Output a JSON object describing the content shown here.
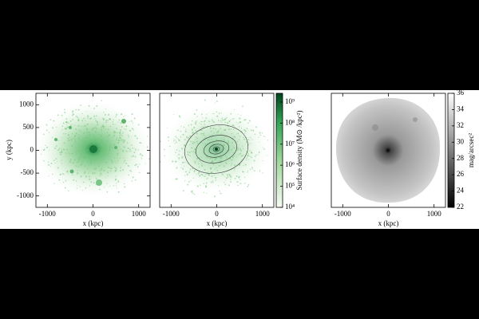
{
  "chart_data": [
    {
      "type": "image",
      "xlabel": "x (kpc)",
      "ylabel": "y (kpc)",
      "xlim": [
        -1250,
        1250
      ],
      "ylim": [
        -1250,
        1250
      ],
      "xticks": [
        -1000,
        0,
        1000
      ],
      "yticks": [
        -1000,
        -500,
        0,
        500,
        1000
      ]
    },
    {
      "type": "image",
      "xlabel": "x (kpc)",
      "xlim": [
        -1250,
        1250
      ],
      "ylim": [
        -1250,
        1250
      ],
      "xticks": [
        -1000,
        0,
        1000
      ],
      "colorbar": {
        "label": "Surface density (M⊙ /kpc²)",
        "scale": "log",
        "colormap": "greens",
        "lim": [
          10000,
          2600000000
        ],
        "ticks": [
          {
            "value": 10000,
            "label": "10⁴"
          },
          {
            "value": 100000,
            "label": "10⁵"
          },
          {
            "value": 1000000,
            "label": "10⁶"
          },
          {
            "value": 10000000,
            "label": "10⁷"
          },
          {
            "value": 100000000,
            "label": "10⁸"
          },
          {
            "value": 1000000000,
            "label": "10⁹"
          }
        ]
      }
    },
    {
      "type": "image",
      "xlabel": "x (kpc)",
      "xlim": [
        -1250,
        1250
      ],
      "ylim": [
        -1250,
        1250
      ],
      "xticks": [
        -1000,
        0,
        1000
      ],
      "colorbar": {
        "label": "mag/arcsec²",
        "scale": "linear",
        "colormap": "gray_r",
        "lim": [
          22,
          36
        ],
        "ticks": [
          22,
          24,
          26,
          28,
          30,
          32,
          34,
          36
        ]
      }
    }
  ]
}
